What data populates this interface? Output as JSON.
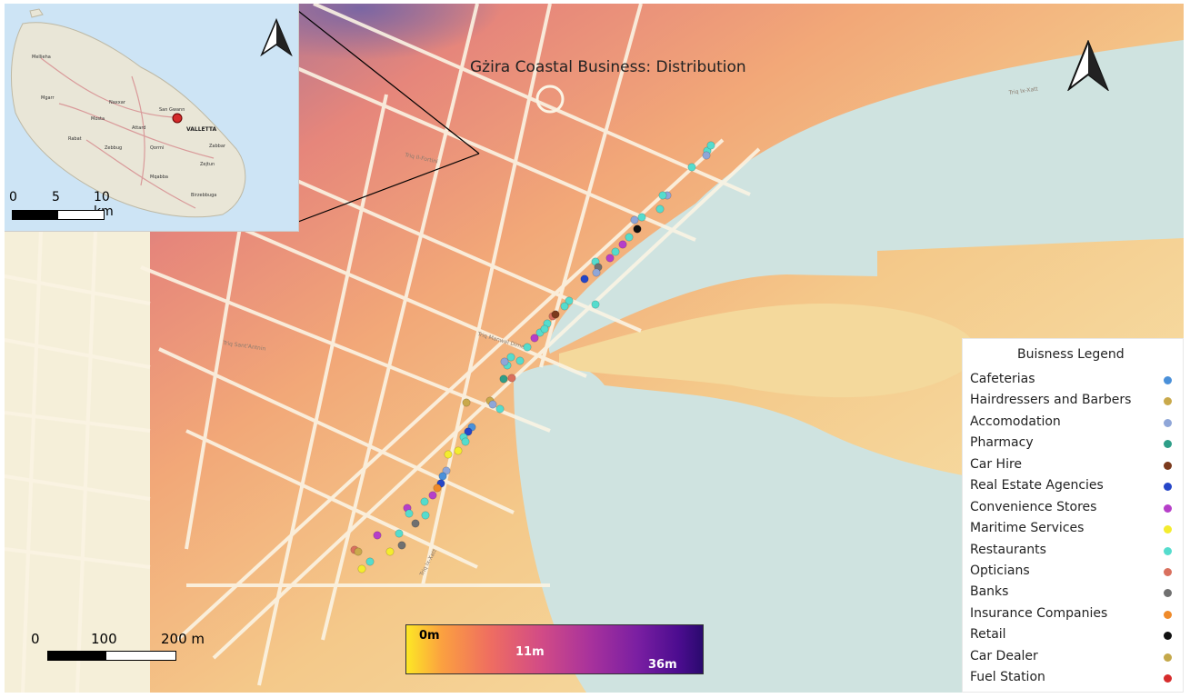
{
  "map": {
    "title": "Gżira Coastal Business: Distribution",
    "main_scale": {
      "labels": [
        "0",
        "100",
        "200 m"
      ]
    },
    "depth_ramp": {
      "labels": [
        "0m",
        "11m",
        "36m"
      ]
    }
  },
  "inset": {
    "place_label": "VALLETTA",
    "place_labels": [
      "Mellieha",
      "Mgarr",
      "Naxxar",
      "San Gwann",
      "Mosta",
      "Attard",
      "Rabat",
      "Zebbug",
      "Qormi",
      "Zabbar",
      "Zejtun",
      "Mqabba",
      "Birzebbuga"
    ],
    "scale": {
      "labels": [
        "0",
        "5",
        "10 km"
      ]
    }
  },
  "legend": {
    "title": "Buisness Legend",
    "items": [
      {
        "label": "Cafeterias",
        "color": "#4a90d9"
      },
      {
        "label": "Hairdressers and Barbers",
        "color": "#c9a94b"
      },
      {
        "label": "Accomodation",
        "color": "#8fa6d8"
      },
      {
        "label": "Pharmacy",
        "color": "#2e9e88"
      },
      {
        "label": "Car Hire",
        "color": "#7b3a1d"
      },
      {
        "label": "Real Estate Agencies",
        "color": "#2546c8"
      },
      {
        "label": "Convenience Stores",
        "color": "#b63fc9"
      },
      {
        "label": "Maritime Services",
        "color": "#f4ec2e"
      },
      {
        "label": "Restaurants",
        "color": "#55dccd"
      },
      {
        "label": "Opticians",
        "color": "#d9705e"
      },
      {
        "label": "Banks",
        "color": "#707070"
      },
      {
        "label": "Insurance Companies",
        "color": "#ef8a2a"
      },
      {
        "label": "Retail",
        "color": "#111111"
      },
      {
        "label": "Car Dealer",
        "color": "#c4a84a"
      },
      {
        "label": "Fuel Station",
        "color": "#d62c2c"
      }
    ]
  },
  "colors": {
    "sea": "#cfe3e0",
    "land": "#f7e9b3",
    "inset_sea": "#cde4f5"
  }
}
